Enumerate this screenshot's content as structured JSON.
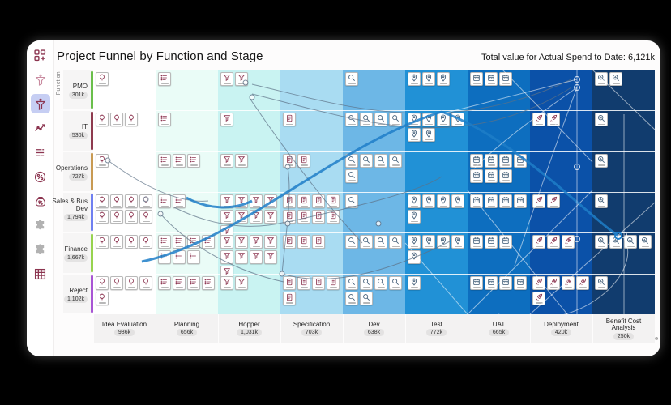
{
  "window": {
    "title": "Project Funnel by Function and Stage",
    "total_label": "Total value for Actual Spend to Date: 6,121k"
  },
  "sidebar": {
    "items": [
      {
        "icon": "add-widget-icon",
        "selected": false
      },
      {
        "icon": "funnel-alt-icon",
        "selected": false
      },
      {
        "icon": "funnel-icon",
        "selected": true
      },
      {
        "icon": "trend-chart-icon",
        "selected": false
      },
      {
        "icon": "bar-list-icon",
        "selected": false
      },
      {
        "icon": "percent-circle-icon",
        "selected": false
      },
      {
        "icon": "cost-bag-icon",
        "selected": false
      },
      {
        "icon": "plugin-icon",
        "selected": false
      },
      {
        "icon": "plugin2-icon",
        "selected": false
      },
      {
        "icon": "pivot-table-icon",
        "selected": false
      }
    ]
  },
  "axes": {
    "function_label": "Function",
    "stage_label": "Stage"
  },
  "functions": [
    {
      "label": "PMO",
      "value": "301k",
      "color": "#6abf4b"
    },
    {
      "label": "IT",
      "value": "530k",
      "color": "#8e3a4e"
    },
    {
      "label": "Operations",
      "value": "727k",
      "color": "#c89a52"
    },
    {
      "label": "Sales & Bus Dev",
      "value": "1,794k",
      "color": "#6f7ff0"
    },
    {
      "label": "Finance",
      "value": "1,667k",
      "color": "#97d34f"
    },
    {
      "label": "Reject",
      "value": "1,102k",
      "color": "#a855d4"
    }
  ],
  "stages": [
    {
      "label": "Idea Evaluation",
      "value": "986k",
      "band": "#ffffff",
      "icon": "bulb",
      "ink": "#8c3550"
    },
    {
      "label": "Planning",
      "value": "656k",
      "band": "#eafcf7",
      "icon": "list",
      "ink": "#8c3550"
    },
    {
      "label": "Hopper",
      "value": "1,031k",
      "band": "#c9f3f2",
      "icon": "funnel",
      "ink": "#8c3550"
    },
    {
      "label": "Specification",
      "value": "703k",
      "band": "#a9dcf2",
      "icon": "doc",
      "ink": "#8c3550"
    },
    {
      "label": "Dev",
      "value": "638k",
      "band": "#6db7e6",
      "icon": "search",
      "ink": "#3d5a75"
    },
    {
      "label": "Test",
      "value": "772k",
      "band": "#2191d6",
      "icon": "pin",
      "ink": "#3d5a75"
    },
    {
      "label": "UAT",
      "value": "665k",
      "band": "#0d6ebf",
      "icon": "calendar",
      "ink": "#3d5a75"
    },
    {
      "label": "Deployment",
      "value": "420k",
      "band": "#0b51a8",
      "icon": "rocket",
      "ink": "#8c3550"
    },
    {
      "label": "Benefit Cost Analysis",
      "value": "250k",
      "band": "#113c6e",
      "icon": "search-chart",
      "ink": "#3d5a75"
    }
  ],
  "chart_data": {
    "type": "heatmap",
    "title": "Project Funnel by Function and Stage",
    "x_categories": [
      "Idea Evaluation",
      "Planning",
      "Hopper",
      "Specification",
      "Dev",
      "Test",
      "UAT",
      "Deployment",
      "Benefit Cost Analysis"
    ],
    "x_totals": [
      "986k",
      "656k",
      "1,031k",
      "703k",
      "638k",
      "772k",
      "665k",
      "420k",
      "250k"
    ],
    "y_categories": [
      "PMO",
      "IT",
      "Operations",
      "Sales & Bus Dev",
      "Finance",
      "Reject"
    ],
    "y_totals": [
      "301k",
      "530k",
      "727k",
      "1,794k",
      "1,667k",
      "1,102k"
    ],
    "project_tile_counts": [
      [
        1,
        1,
        2,
        0,
        1,
        3,
        3,
        0,
        2
      ],
      [
        3,
        1,
        1,
        1,
        4,
        6,
        0,
        2,
        1
      ],
      [
        1,
        3,
        2,
        2,
        5,
        0,
        7,
        0,
        1
      ],
      [
        8,
        2,
        9,
        8,
        1,
        5,
        4,
        2,
        1
      ],
      [
        4,
        7,
        9,
        3,
        4,
        5,
        3,
        3,
        4
      ],
      [
        5,
        4,
        2,
        5,
        6,
        1,
        4,
        5,
        1
      ]
    ],
    "grand_total": "6,121k",
    "legend_position": "none",
    "grid": true
  }
}
